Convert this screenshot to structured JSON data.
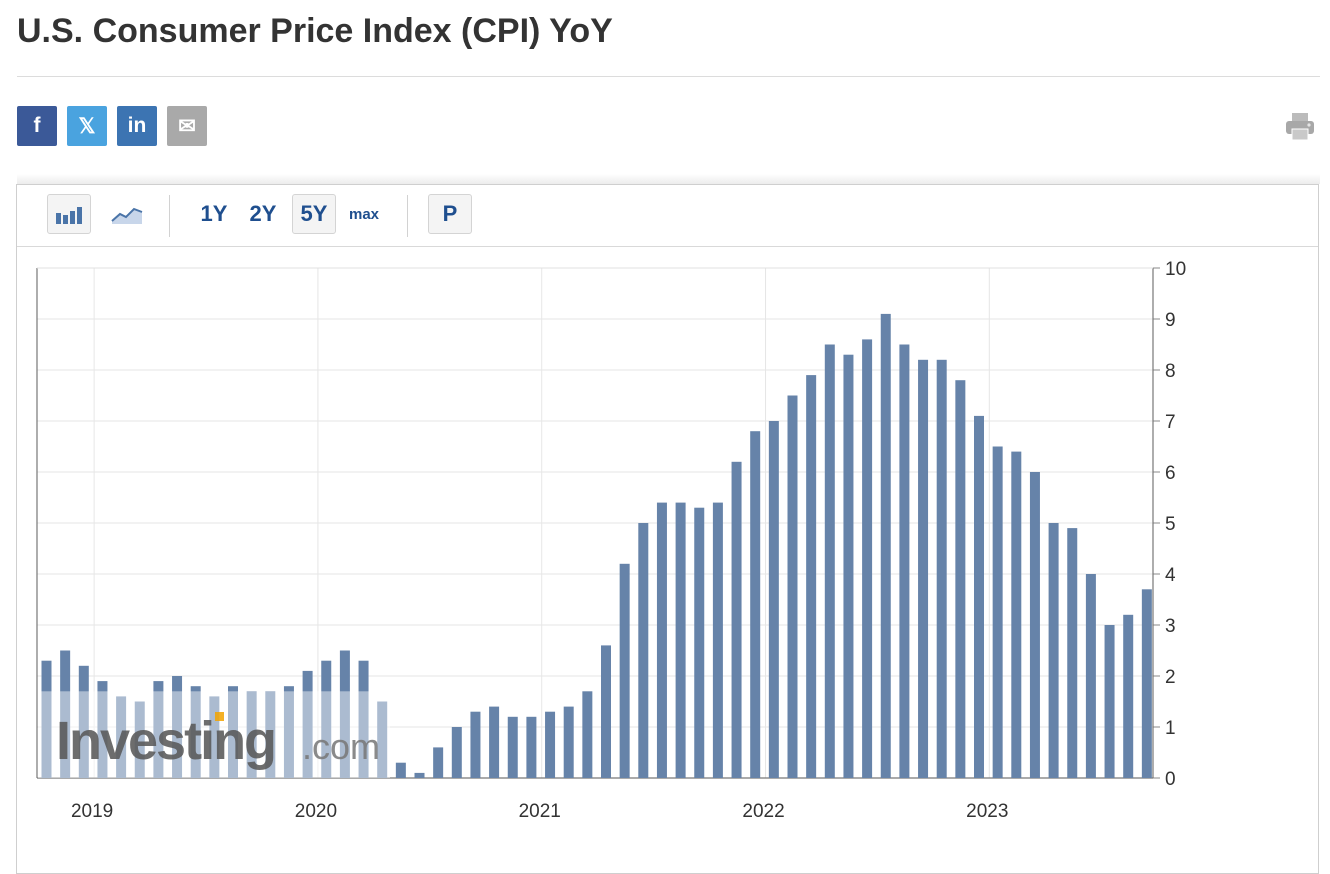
{
  "header": {
    "title": "U.S. Consumer Price Index (CPI) YoY"
  },
  "share": [
    {
      "name": "facebook-button",
      "icon": "facebook-icon",
      "glyph": "f",
      "color": "#3b5998"
    },
    {
      "name": "x-button",
      "icon": "x-icon",
      "glyph": "𝕏",
      "color": "#4aa3df"
    },
    {
      "name": "linkedin-button",
      "icon": "linkedin-icon",
      "glyph": "in",
      "color": "#3c74b2"
    },
    {
      "name": "email-button",
      "icon": "email-icon",
      "glyph": "✉",
      "color": "#a9a9a9"
    }
  ],
  "toolbar": {
    "ranges": [
      "1Y",
      "2Y",
      "5Y"
    ],
    "max_label": "max",
    "selected_range": "5Y",
    "p_label": "P",
    "icons": [
      "bar-chart-icon",
      "line-chart-icon"
    ]
  },
  "watermark": {
    "brand": "Investing",
    "suffix": ".com"
  },
  "colors": {
    "bar": "#6683a9",
    "bar_hist": "#adbdd4",
    "axis_text": "#333333",
    "grid": "#e6e6e6"
  },
  "chart_data": {
    "type": "bar",
    "title": "U.S. Consumer Price Index (CPI) YoY",
    "series": [
      {
        "name": "",
        "values": [
          2.3,
          2.5,
          2.2,
          1.9,
          1.6,
          1.5,
          1.9,
          2.0,
          1.8,
          1.6,
          1.8,
          1.7,
          1.7,
          1.8,
          2.1,
          2.3,
          2.5,
          2.3,
          1.5,
          0.3,
          0.1,
          0.6,
          1.0,
          1.3,
          1.4,
          1.2,
          1.2,
          1.3,
          1.4,
          1.7,
          2.6,
          4.2,
          5.0,
          5.4,
          5.4,
          5.3,
          5.4,
          6.2,
          6.8,
          7.0,
          7.5,
          7.9,
          8.5,
          8.3,
          8.6,
          9.1,
          8.5,
          8.2,
          8.2,
          7.8,
          7.1,
          6.5,
          6.4,
          6.0,
          5.0,
          4.9,
          4.0,
          3.0,
          3.2,
          3.7
        ]
      }
    ],
    "x_start": "2018-10",
    "x_end": "2023-09",
    "x_ticks": [
      "2019",
      "2020",
      "2021",
      "2022",
      "2023"
    ],
    "y_ticks": [
      0,
      1,
      2,
      3,
      4,
      5,
      6,
      7,
      8,
      9,
      10
    ],
    "ylim": [
      0,
      10
    ],
    "grid": true,
    "y_axis_side": "right",
    "xlabel": "",
    "ylabel": ""
  }
}
